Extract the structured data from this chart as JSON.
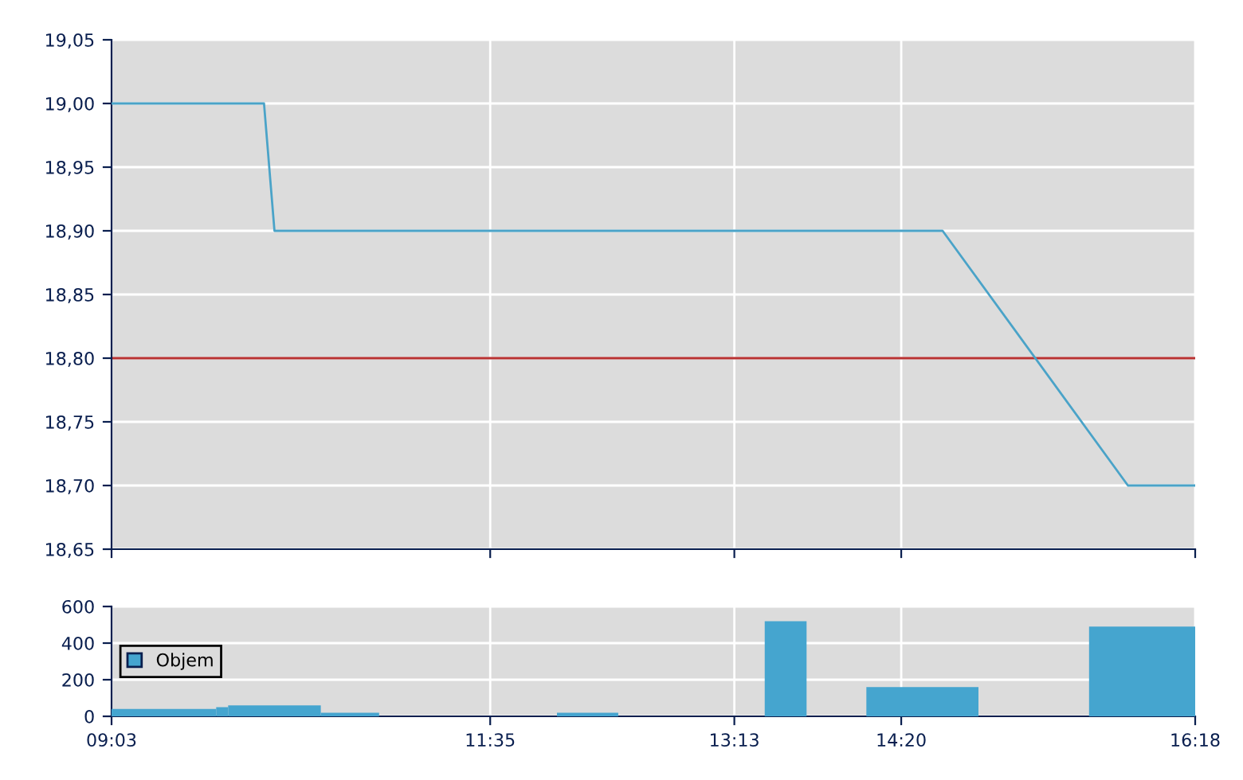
{
  "chart_data": [
    {
      "type": "line",
      "x": [
        9.05,
        10.07,
        10.14,
        14.61,
        15.85,
        16.3
      ],
      "series": [
        {
          "color": "#4aa3c8",
          "values": [
            19.0,
            19.0,
            18.9,
            18.9,
            18.7,
            18.7
          ]
        }
      ],
      "xlim": [
        9.05,
        16.3
      ],
      "xticks": [
        {
          "value": 9.05,
          "label": null
        },
        {
          "value": 11.5833,
          "label": null
        },
        {
          "value": 13.2167,
          "label": null
        },
        {
          "value": 14.3333,
          "label": null
        },
        {
          "value": 16.3,
          "label": null
        }
      ],
      "ylim": [
        18.65,
        19.05
      ],
      "yticks": [
        {
          "value": 18.65,
          "label": "18,65"
        },
        {
          "value": 18.7,
          "label": "18,70"
        },
        {
          "value": 18.75,
          "label": "18,75"
        },
        {
          "value": 18.8,
          "label": "18,80"
        },
        {
          "value": 18.85,
          "label": "18,85"
        },
        {
          "value": 18.9,
          "label": "18,90"
        },
        {
          "value": 18.95,
          "label": "18,95"
        },
        {
          "value": 19.0,
          "label": "19,00"
        },
        {
          "value": 19.05,
          "label": "19,05"
        }
      ],
      "ref_lines": [
        {
          "axis": "y",
          "value": 18.8,
          "color": "#b83232"
        }
      ],
      "grid": true,
      "tick_labels": "y"
    },
    {
      "type": "histogram",
      "bins": [
        9.05,
        9.75,
        9.83,
        10.45,
        10.84,
        12.03,
        12.44,
        13.42,
        13.7,
        14.1,
        14.85,
        15.59,
        16.3
      ],
      "series": [
        {
          "name": "Objem",
          "color": "#45a5cf",
          "values": [
            40,
            50,
            60,
            20,
            0,
            20,
            0,
            520,
            0,
            160,
            0,
            490
          ]
        }
      ],
      "xlim": [
        9.05,
        16.3
      ],
      "xticks": [
        {
          "value": 9.05,
          "label": "09:03"
        },
        {
          "value": 11.5833,
          "label": "11:35"
        },
        {
          "value": 13.2167,
          "label": "13:13"
        },
        {
          "value": 14.3333,
          "label": "14:20"
        },
        {
          "value": 16.3,
          "label": "16:18"
        }
      ],
      "ylim": [
        0,
        600
      ],
      "yticks": [
        0,
        200,
        400,
        600
      ],
      "grid": true,
      "legend": "left"
    }
  ]
}
